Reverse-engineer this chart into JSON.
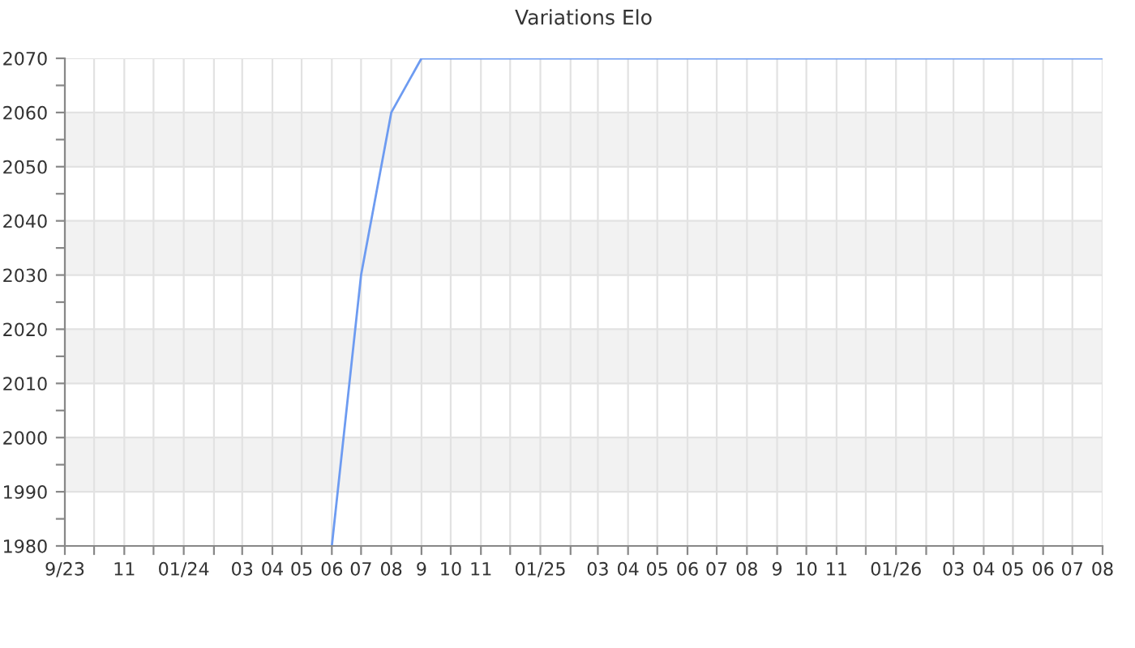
{
  "chart_data": {
    "type": "line",
    "title": "Variations Elo",
    "x": [
      "2024-06",
      "2024-07",
      "2024-08",
      "2024-09",
      "2026-08"
    ],
    "series": [
      {
        "color": "#6d9bf1",
        "values": [
          1980,
          2030,
          2060,
          2070,
          2070
        ]
      }
    ],
    "xlim": [
      "2023-09",
      "2026-08"
    ],
    "ylim": [
      1980,
      2070
    ],
    "xticks": [
      {
        "value": "2023-09",
        "label": "9/23"
      },
      {
        "value": "2023-10",
        "label": null
      },
      {
        "value": "2023-11",
        "label": "11"
      },
      {
        "value": "2023-12",
        "label": null
      },
      {
        "value": "2024-01",
        "label": "01/24"
      },
      {
        "value": "2024-02",
        "label": null
      },
      {
        "value": "2024-03",
        "label": "03"
      },
      {
        "value": "2024-04",
        "label": "04"
      },
      {
        "value": "2024-05",
        "label": "05"
      },
      {
        "value": "2024-06",
        "label": "06"
      },
      {
        "value": "2024-07",
        "label": "07"
      },
      {
        "value": "2024-08",
        "label": "08"
      },
      {
        "value": "2024-09",
        "label": "9"
      },
      {
        "value": "2024-10",
        "label": "10"
      },
      {
        "value": "2024-11",
        "label": "11"
      },
      {
        "value": "2024-12",
        "label": null
      },
      {
        "value": "2025-01",
        "label": "01/25"
      },
      {
        "value": "2025-02",
        "label": null
      },
      {
        "value": "2025-03",
        "label": "03"
      },
      {
        "value": "2025-04",
        "label": "04"
      },
      {
        "value": "2025-05",
        "label": "05"
      },
      {
        "value": "2025-06",
        "label": "06"
      },
      {
        "value": "2025-07",
        "label": "07"
      },
      {
        "value": "2025-08",
        "label": "08"
      },
      {
        "value": "2025-09",
        "label": "9"
      },
      {
        "value": "2025-10",
        "label": "10"
      },
      {
        "value": "2025-11",
        "label": "11"
      },
      {
        "value": "2025-12",
        "label": null
      },
      {
        "value": "2026-01",
        "label": "01/26"
      },
      {
        "value": "2026-02",
        "label": null
      },
      {
        "value": "2026-03",
        "label": "03"
      },
      {
        "value": "2026-04",
        "label": "04"
      },
      {
        "value": "2026-05",
        "label": "05"
      },
      {
        "value": "2026-06",
        "label": "06"
      },
      {
        "value": "2026-07",
        "label": "07"
      },
      {
        "value": "2026-08",
        "label": "08"
      }
    ],
    "yticks": [
      1980,
      {
        "value": 1985,
        "label": null
      },
      1990,
      {
        "value": 1995,
        "label": null
      },
      2000,
      {
        "value": 2005,
        "label": null
      },
      2010,
      {
        "value": 2015,
        "label": null
      },
      2020,
      {
        "value": 2025,
        "label": null
      },
      2030,
      {
        "value": 2035,
        "label": null
      },
      2040,
      {
        "value": 2045,
        "label": null
      },
      2050,
      {
        "value": 2055,
        "label": null
      },
      2060,
      {
        "value": 2065,
        "label": null
      },
      2070
    ],
    "bands": [
      {
        "axis": "y",
        "from": 1990,
        "to": 2000,
        "color": "#f2f2f2"
      },
      {
        "axis": "y",
        "from": 2010,
        "to": 2020,
        "color": "#f2f2f2"
      },
      {
        "axis": "y",
        "from": 2030,
        "to": 2040,
        "color": "#f2f2f2"
      },
      {
        "axis": "y",
        "from": 2050,
        "to": 2060,
        "color": "#f2f2f2"
      }
    ],
    "grid": true,
    "line_style": "solid"
  }
}
